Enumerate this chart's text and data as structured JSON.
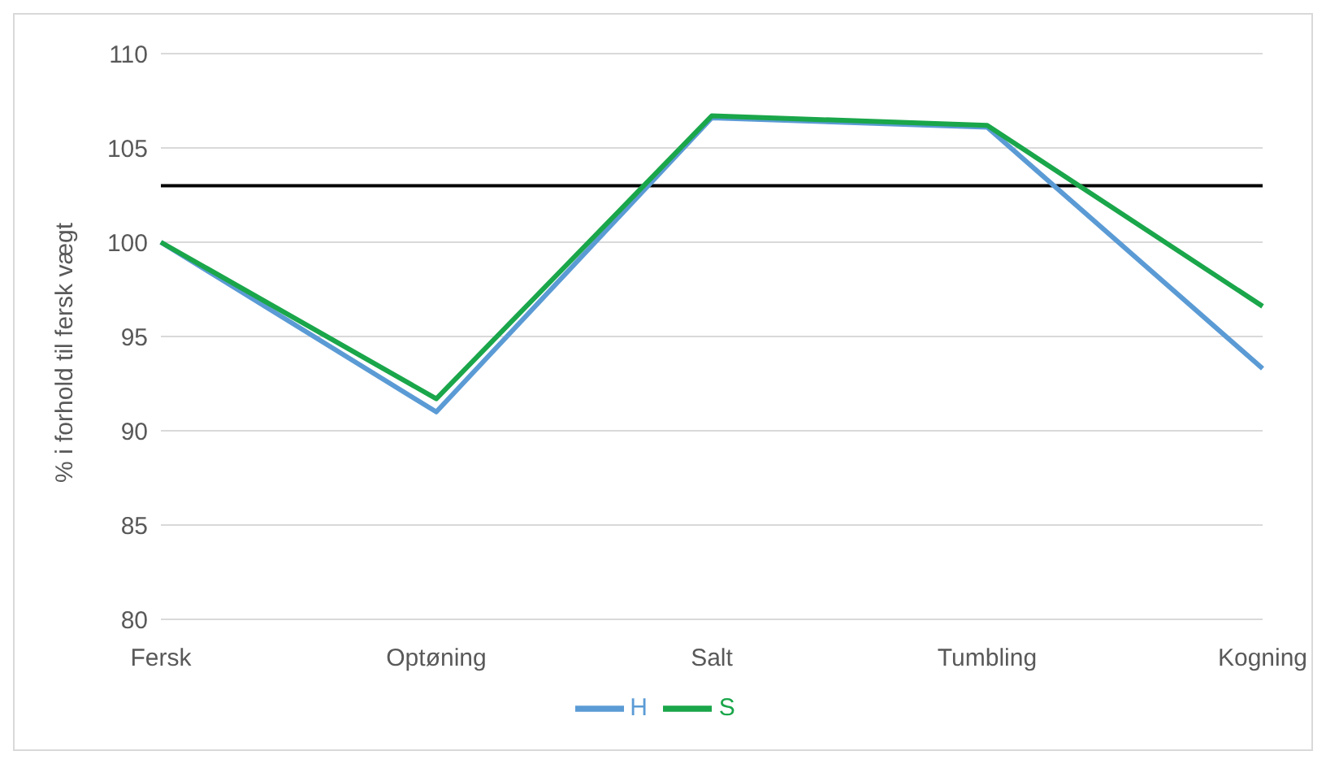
{
  "chart_data": {
    "type": "line",
    "ylabel": "% i forhold til fersk vægt",
    "categories": [
      "Fersk",
      "Optøning",
      "Salt",
      "Tumbling",
      "Kogning"
    ],
    "series": [
      {
        "name": "H",
        "color": "#5b9bd5",
        "values": [
          100,
          91.0,
          106.6,
          106.1,
          93.3
        ]
      },
      {
        "name": "S",
        "color": "#1aa64a",
        "values": [
          100,
          91.7,
          106.7,
          106.2,
          96.6
        ]
      }
    ],
    "ylim": [
      80,
      110
    ],
    "yticks": [
      80,
      85,
      90,
      95,
      100,
      105,
      110
    ],
    "grid": "y",
    "legend": "bottom",
    "marker": "none",
    "line_style": "solid",
    "ref_lines": [
      {
        "axis": "y",
        "value": 103,
        "color": "#000000"
      }
    ]
  }
}
